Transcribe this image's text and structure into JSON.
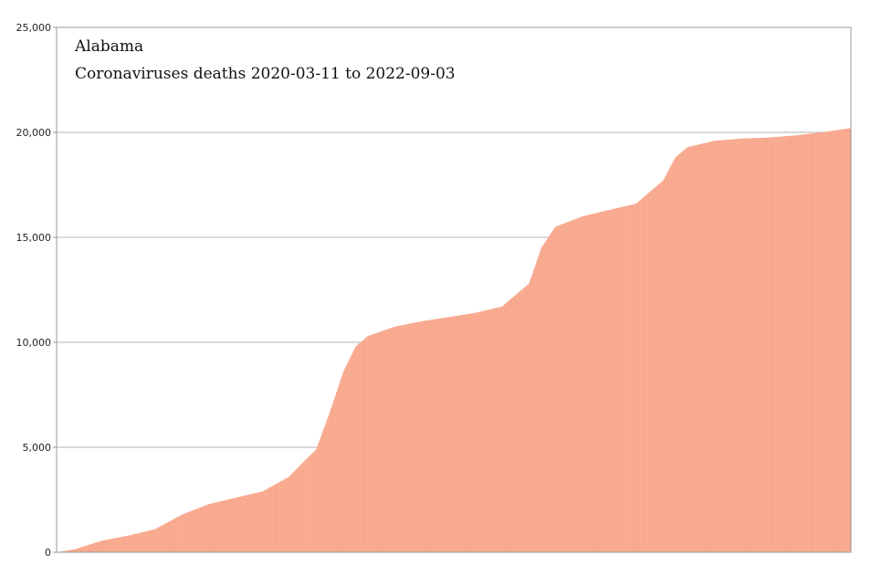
{
  "chart_data": {
    "type": "bar",
    "title": "Alabama",
    "subtitle": "Coronaviruses deaths 2020-03-11 to 2022-09-03",
    "xlabel": "",
    "ylabel": "",
    "ylim": [
      0,
      25000
    ],
    "yticks": [
      0,
      5000,
      10000,
      15000,
      20000,
      25000
    ],
    "ytick_labels": [
      "0",
      "5,000",
      "10,000",
      "15,000",
      "20,000",
      "25,000"
    ],
    "x_start": "2020-03-11",
    "x_end": "2022-09-03",
    "grid": true,
    "colors": {
      "bar": "#f8a488",
      "bar_gap": "#ffffff",
      "grid": "#b4b4b4",
      "frame": "#9a9a9a"
    },
    "series": [
      {
        "x": [
          "2020-03-11",
          "2020-04-01",
          "2020-05-01",
          "2020-06-01",
          "2020-07-01",
          "2020-08-01",
          "2020-09-01",
          "2020-10-01",
          "2020-11-01",
          "2020-12-01",
          "2020-12-15",
          "2021-01-01",
          "2021-01-15",
          "2021-02-01",
          "2021-02-15",
          "2021-03-01",
          "2021-04-01",
          "2021-05-01",
          "2021-06-01",
          "2021-07-01",
          "2021-08-01",
          "2021-08-15",
          "2021-09-01",
          "2021-09-15",
          "2021-10-01",
          "2021-11-01",
          "2021-12-01",
          "2022-01-01",
          "2022-01-15",
          "2022-02-01",
          "2022-02-15",
          "2022-03-01",
          "2022-04-01",
          "2022-05-01",
          "2022-06-01",
          "2022-07-01",
          "2022-08-01",
          "2022-09-03"
        ],
        "values": [
          0,
          150,
          550,
          800,
          1100,
          1800,
          2300,
          2600,
          2900,
          3600,
          4200,
          4900,
          6500,
          8600,
          9800,
          10300,
          10750,
          11000,
          11200,
          11400,
          11700,
          12200,
          12800,
          14500,
          15500,
          16000,
          16300,
          16600,
          17100,
          17700,
          18800,
          19300,
          19600,
          19700,
          19750,
          19850,
          20000,
          20200
        ]
      }
    ]
  }
}
